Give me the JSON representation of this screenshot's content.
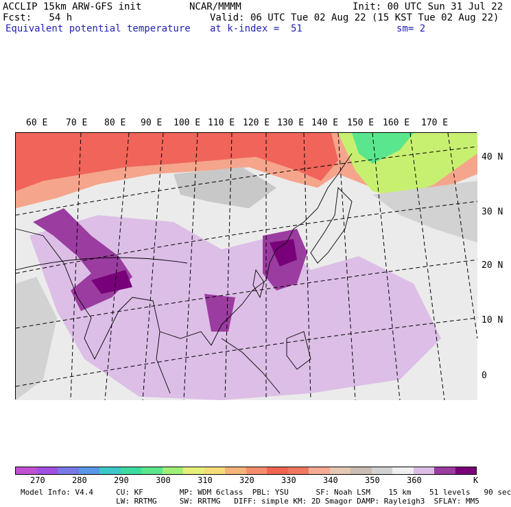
{
  "header": {
    "model": "ACCLIP 15km ARW-GFS init",
    "center": "NCAR/MMMM",
    "init": "Init: 00 UTC Sun 31 Jul 22",
    "fcst": "Fcst:   54 h",
    "valid": "Valid: 06 UTC Tue 02 Aug 22 (15 KST Tue 02 Aug 22)",
    "field": "Equivalent potential temperature",
    "level": "at k-index =  51",
    "smooth": "sm= 2"
  },
  "map": {
    "lon_labels": [
      "60 E",
      "70 E",
      "80 E",
      "90 E",
      "100 E",
      "110 E",
      "120 E",
      "130 E",
      "140 E",
      "150 E",
      "160 E",
      "170 E"
    ],
    "lat_labels": [
      "40 N",
      "30 N",
      "20 N",
      "10 N",
      "0"
    ],
    "colors": {
      "background": "#ebebeb",
      "hot": "#f0645a",
      "warm": "#f5a58c",
      "green": "#5ae68c",
      "yellowgreen": "#c8f070",
      "lightpurple": "#dcbee6",
      "midpurple": "#9b3ca0",
      "darkpurple": "#780078",
      "gray": "#c8c8c8"
    }
  },
  "colorbar": {
    "colors": [
      "#c050d0",
      "#a050e0",
      "#7878e6",
      "#5a96e6",
      "#3cc8c8",
      "#3cdca0",
      "#5ae68c",
      "#a0f078",
      "#e6f078",
      "#f5dc78",
      "#f5b478",
      "#f58c6e",
      "#f06450",
      "#f07860",
      "#f5aa96",
      "#e6c8b4",
      "#c8beb4",
      "#d2d2d2",
      "#f0f0f0",
      "#dcbee6",
      "#9b3ca0",
      "#780078"
    ],
    "ticks": [
      "270",
      "280",
      "290",
      "300",
      "310",
      "320",
      "330",
      "340",
      "350",
      "360"
    ],
    "unit": "K"
  },
  "footer": {
    "line1": "Model Info: V4.4     CU: KF        MP: WDM 6class  PBL: YSU      SF: Noah LSM    15 km    51 levels   90 sec",
    "line2": "                     LW: RRTMG     SW: RRTMG   DIFF: simple KM: 2D Smagor DAMP: Rayleigh3  SFLAY: MM5"
  }
}
